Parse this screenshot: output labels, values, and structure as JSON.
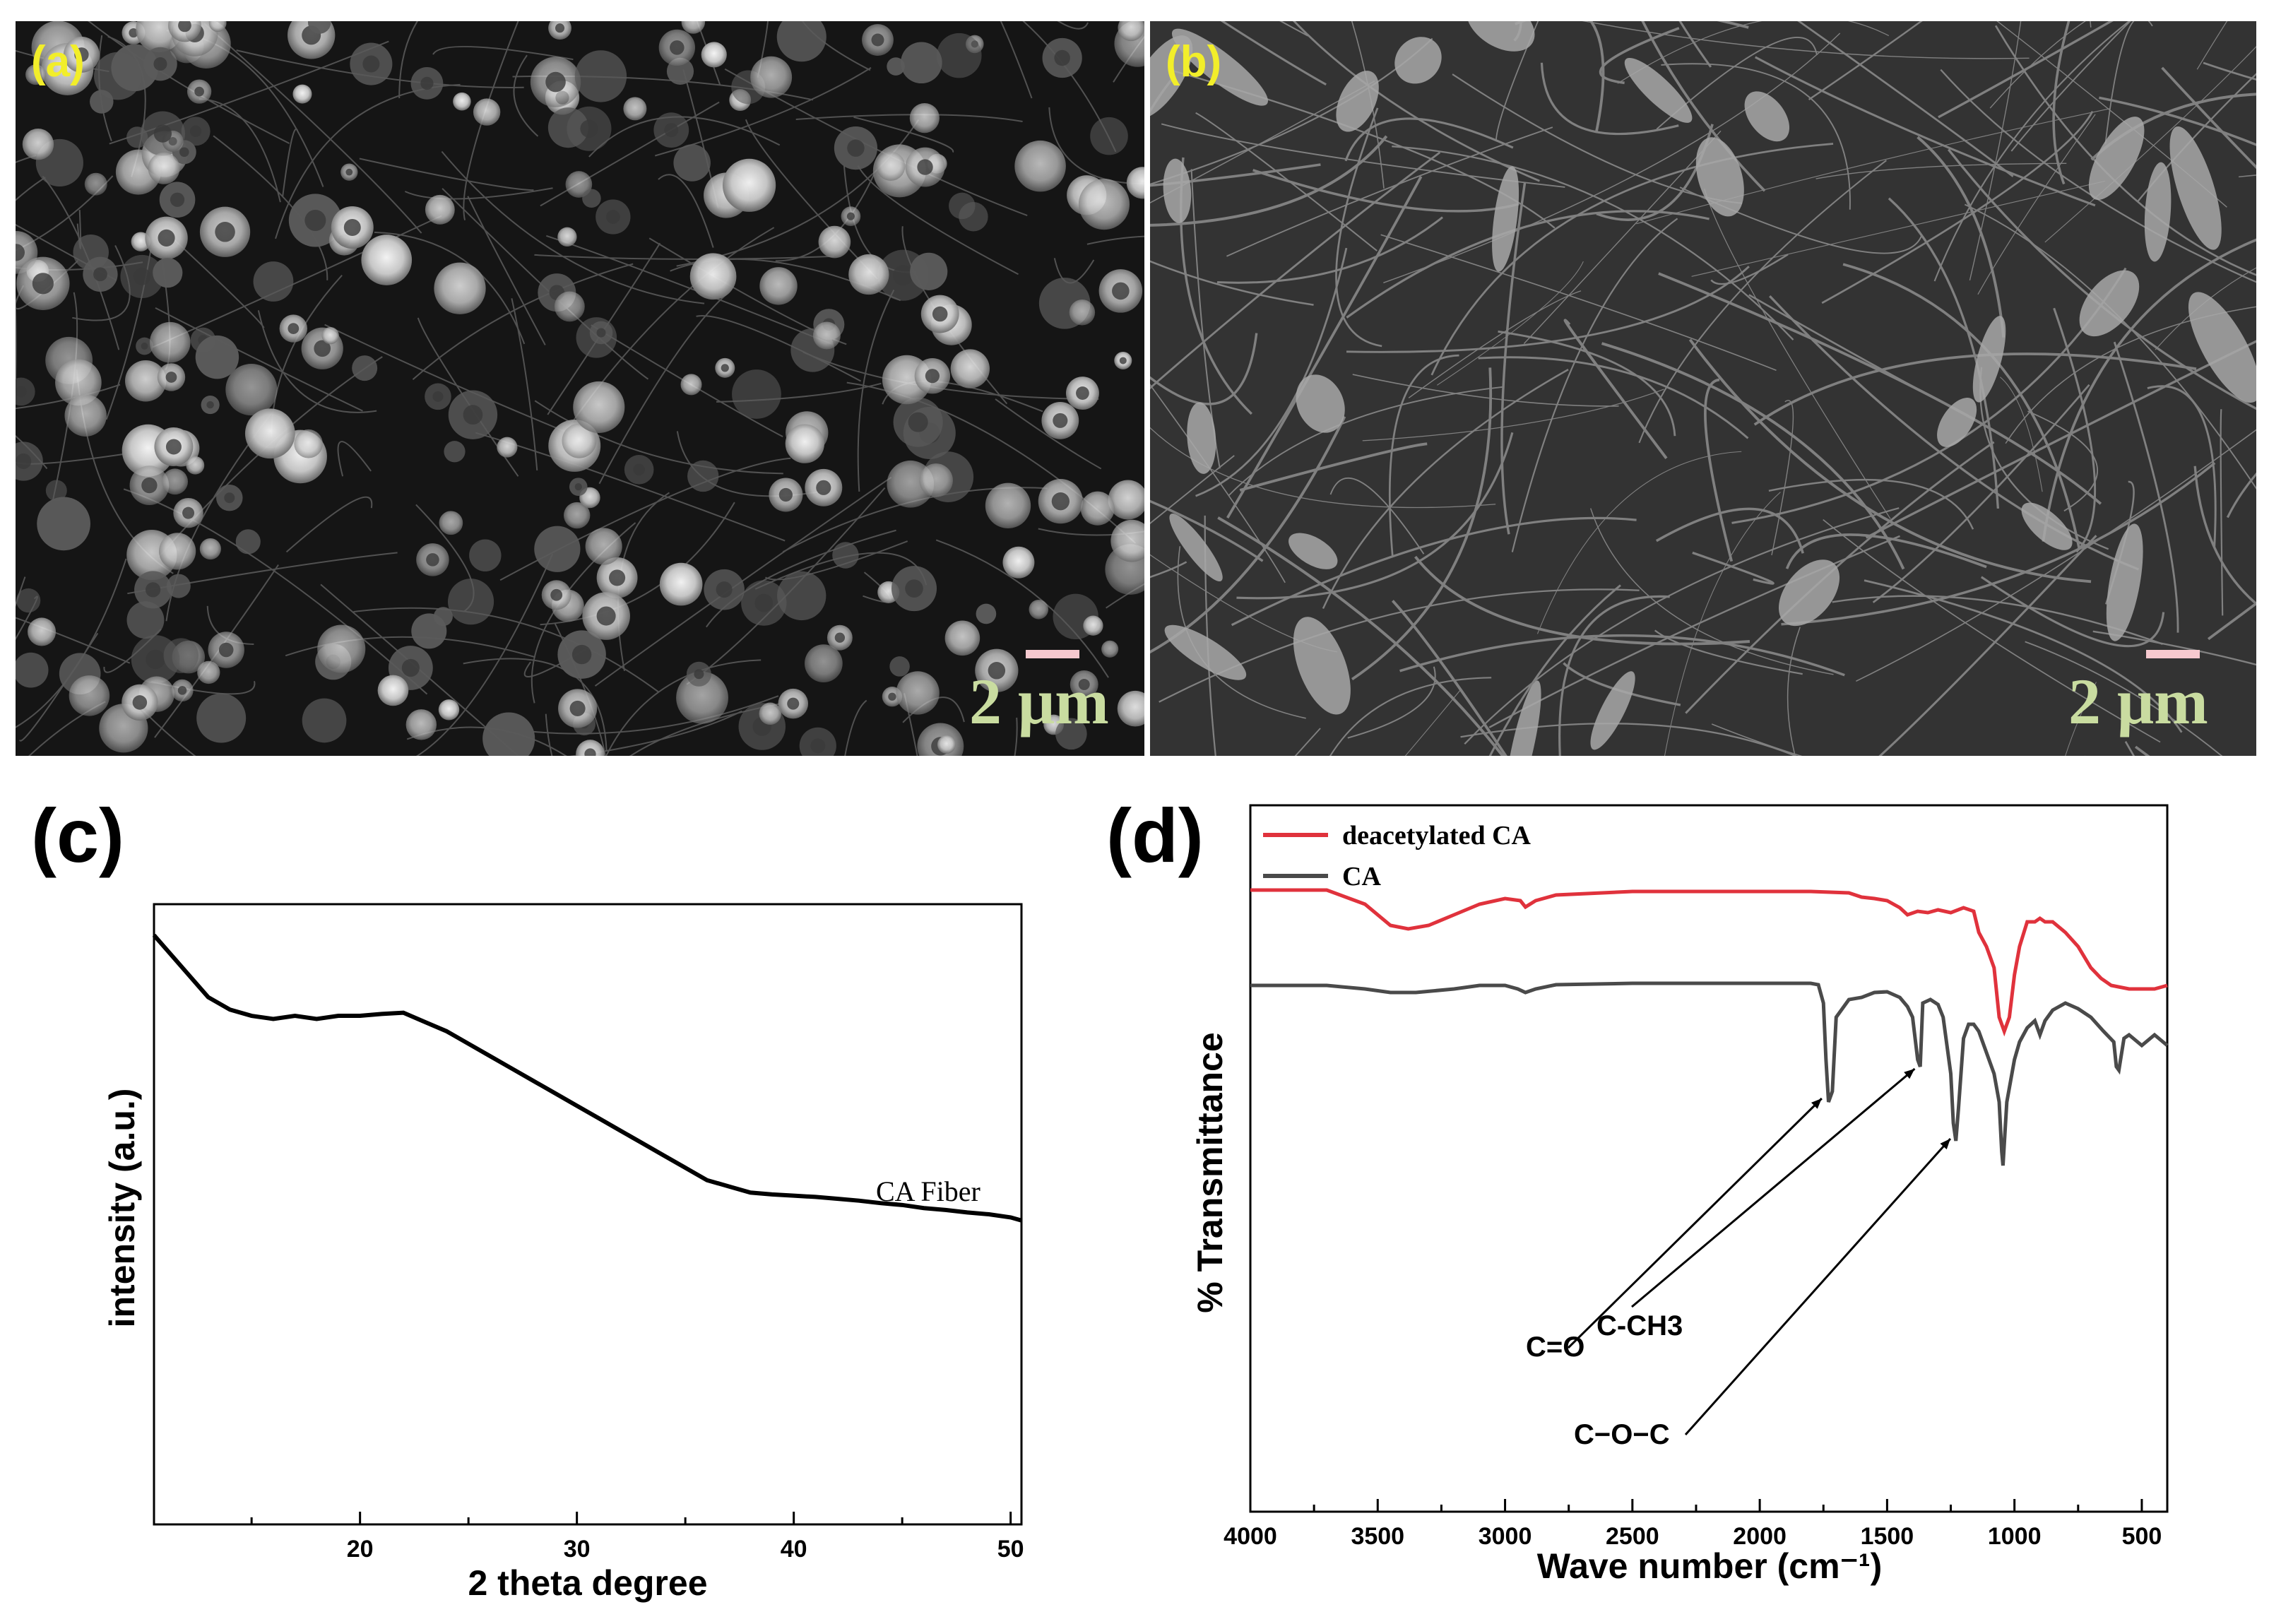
{
  "panels": {
    "a": {
      "label": "(a)",
      "scale": "2 μm"
    },
    "b": {
      "label": "(b)",
      "scale": "2 μm"
    },
    "c": {
      "letter": "(c)"
    },
    "d": {
      "letter": "(d)"
    }
  },
  "colors": {
    "label_yellow": "#f2ee2a",
    "scale_green": "#c9dca0",
    "scale_bar": "#f6c9cf",
    "red_series": "#e0323c",
    "gray_series": "#4a4a4a"
  },
  "chart_data": [
    {
      "type": "line",
      "panel": "c",
      "xlabel": "2 theta degree",
      "ylabel": "intensity (a.u.)",
      "xlim": [
        10.5,
        50.5
      ],
      "xticks": [
        20,
        30,
        40,
        50
      ],
      "ylim": [
        0,
        1
      ],
      "yticks_shown": false,
      "annotation": "CA Fiber",
      "series": [
        {
          "name": "CA Fiber",
          "x": [
            10.5,
            11,
            12,
            13,
            14,
            15,
            16,
            17,
            18,
            19,
            20,
            21,
            22,
            23,
            24,
            25,
            26,
            27,
            28,
            29,
            30,
            31,
            32,
            33,
            34,
            35,
            36,
            37,
            38,
            39,
            40,
            41,
            42,
            43,
            44,
            45,
            46,
            47,
            48,
            49,
            50,
            50.5
          ],
          "y": [
            0.95,
            0.93,
            0.89,
            0.85,
            0.83,
            0.82,
            0.815,
            0.82,
            0.815,
            0.82,
            0.82,
            0.823,
            0.825,
            0.81,
            0.795,
            0.775,
            0.755,
            0.735,
            0.715,
            0.695,
            0.675,
            0.655,
            0.635,
            0.615,
            0.595,
            0.575,
            0.555,
            0.545,
            0.535,
            0.532,
            0.53,
            0.528,
            0.525,
            0.522,
            0.518,
            0.515,
            0.51,
            0.507,
            0.503,
            0.5,
            0.495,
            0.49
          ]
        }
      ]
    },
    {
      "type": "line",
      "panel": "d",
      "xlabel": "Wave number (cm⁻¹)",
      "ylabel": "% Transmittance",
      "xlim": [
        4000,
        400
      ],
      "xticks": [
        4000,
        3500,
        3000,
        2500,
        2000,
        1500,
        1000,
        500
      ],
      "ylim": [
        0,
        1
      ],
      "yticks_shown": false,
      "legend": "top-left",
      "annotations": [
        "C=O",
        "C-CH3",
        "C−O−C"
      ],
      "series": [
        {
          "name": "deacetylated CA",
          "color": "#e0323c",
          "x": [
            4000,
            3700,
            3550,
            3450,
            3380,
            3300,
            3200,
            3100,
            3000,
            2940,
            2920,
            2880,
            2800,
            2500,
            2000,
            1800,
            1650,
            1600,
            1550,
            1500,
            1450,
            1420,
            1380,
            1340,
            1300,
            1250,
            1200,
            1160,
            1140,
            1110,
            1080,
            1060,
            1040,
            1020,
            1000,
            980,
            950,
            920,
            900,
            880,
            850,
            800,
            750,
            700,
            660,
            620,
            550,
            450,
            400
          ],
          "y": [
            0.88,
            0.88,
            0.86,
            0.83,
            0.825,
            0.83,
            0.845,
            0.86,
            0.868,
            0.865,
            0.856,
            0.865,
            0.873,
            0.878,
            0.878,
            0.878,
            0.876,
            0.87,
            0.868,
            0.865,
            0.855,
            0.845,
            0.85,
            0.848,
            0.852,
            0.848,
            0.855,
            0.85,
            0.82,
            0.8,
            0.77,
            0.7,
            0.68,
            0.7,
            0.76,
            0.8,
            0.835,
            0.835,
            0.84,
            0.835,
            0.835,
            0.82,
            0.8,
            0.77,
            0.755,
            0.745,
            0.74,
            0.74,
            0.745
          ]
        },
        {
          "name": "CA",
          "color": "#4a4a4a",
          "x": [
            4000,
            3700,
            3550,
            3450,
            3350,
            3200,
            3100,
            3000,
            2950,
            2920,
            2880,
            2800,
            2500,
            2000,
            1800,
            1770,
            1750,
            1740,
            1730,
            1715,
            1700,
            1650,
            1600,
            1550,
            1500,
            1450,
            1420,
            1400,
            1380,
            1370,
            1360,
            1330,
            1300,
            1280,
            1250,
            1240,
            1230,
            1220,
            1200,
            1180,
            1160,
            1140,
            1120,
            1100,
            1080,
            1060,
            1050,
            1045,
            1030,
            1000,
            980,
            950,
            920,
            900,
            880,
            850,
            800,
            750,
            700,
            650,
            610,
            600,
            590,
            570,
            550,
            500,
            450,
            400
          ],
          "y": [
            0.745,
            0.745,
            0.74,
            0.735,
            0.735,
            0.74,
            0.745,
            0.745,
            0.74,
            0.735,
            0.74,
            0.746,
            0.748,
            0.748,
            0.748,
            0.746,
            0.72,
            0.64,
            0.58,
            0.595,
            0.7,
            0.725,
            0.728,
            0.735,
            0.736,
            0.728,
            0.715,
            0.7,
            0.64,
            0.63,
            0.72,
            0.725,
            0.718,
            0.7,
            0.62,
            0.55,
            0.525,
            0.57,
            0.67,
            0.69,
            0.69,
            0.68,
            0.66,
            0.64,
            0.62,
            0.58,
            0.51,
            0.49,
            0.58,
            0.64,
            0.665,
            0.685,
            0.695,
            0.675,
            0.695,
            0.71,
            0.72,
            0.712,
            0.7,
            0.68,
            0.665,
            0.63,
            0.625,
            0.67,
            0.675,
            0.66,
            0.675,
            0.66
          ]
        }
      ]
    }
  ]
}
